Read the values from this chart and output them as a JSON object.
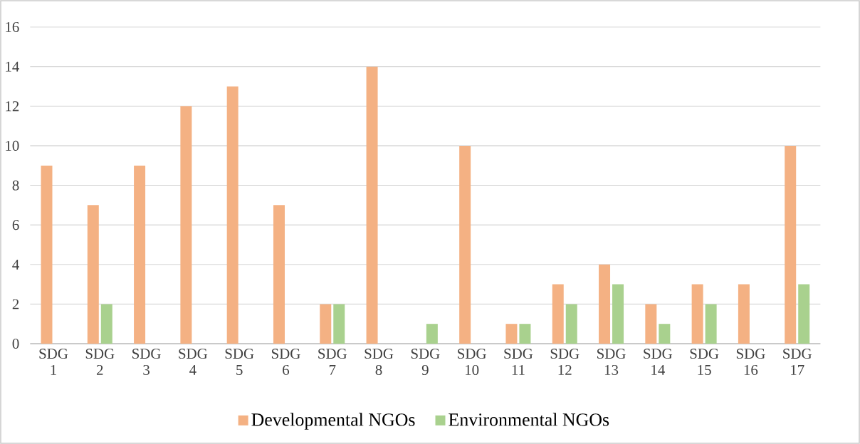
{
  "chart_data": {
    "type": "bar",
    "categories": [
      "SDG 1",
      "SDG 2",
      "SDG 3",
      "SDG 4",
      "SDG 5",
      "SDG 6",
      "SDG 7",
      "SDG 8",
      "SDG 9",
      "SDG 10",
      "SDG 11",
      "SDG 12",
      "SDG 13",
      "SDG 14",
      "SDG 15",
      "SDG 16",
      "SDG 17"
    ],
    "series": [
      {
        "name": "Developmental NGOs",
        "color": "#f4b183",
        "values": [
          9,
          7,
          9,
          12,
          13,
          7,
          2,
          14,
          0,
          10,
          1,
          3,
          4,
          2,
          3,
          3,
          10
        ]
      },
      {
        "name": "Environmental NGOs",
        "color": "#a9d18e",
        "values": [
          0,
          2,
          0,
          0,
          0,
          0,
          2,
          0,
          1,
          0,
          1,
          2,
          3,
          1,
          2,
          0,
          3
        ]
      }
    ],
    "ylim": [
      0,
      16
    ],
    "yticks": [
      0,
      2,
      4,
      6,
      8,
      10,
      12,
      14,
      16
    ],
    "grid": "y",
    "legend": "bottom"
  }
}
